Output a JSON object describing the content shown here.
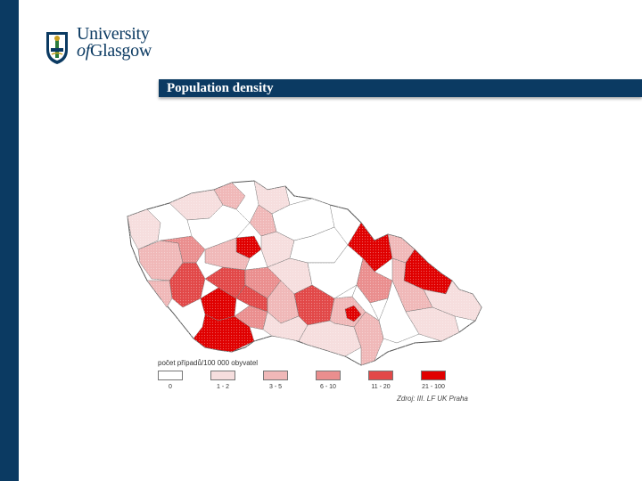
{
  "header": {
    "logo_line1": "University",
    "logo_line2_of": "of",
    "logo_line2": "Glasgow"
  },
  "slide": {
    "title": "Population density"
  },
  "map": {
    "legend_caption": "počet případů/100 000 obyvatel",
    "legend": [
      {
        "label": "0",
        "color": "#ffffff"
      },
      {
        "label": "1 - 2",
        "color": "#f6dede"
      },
      {
        "label": "3 - 5",
        "color": "#f0b8b8"
      },
      {
        "label": "6 - 10",
        "color": "#ea8e8e"
      },
      {
        "label": "11 - 20",
        "color": "#e24848"
      },
      {
        "label": "21 - 100",
        "color": "#e00000"
      }
    ],
    "source": "Zdroj: III. LF UK Praha"
  }
}
